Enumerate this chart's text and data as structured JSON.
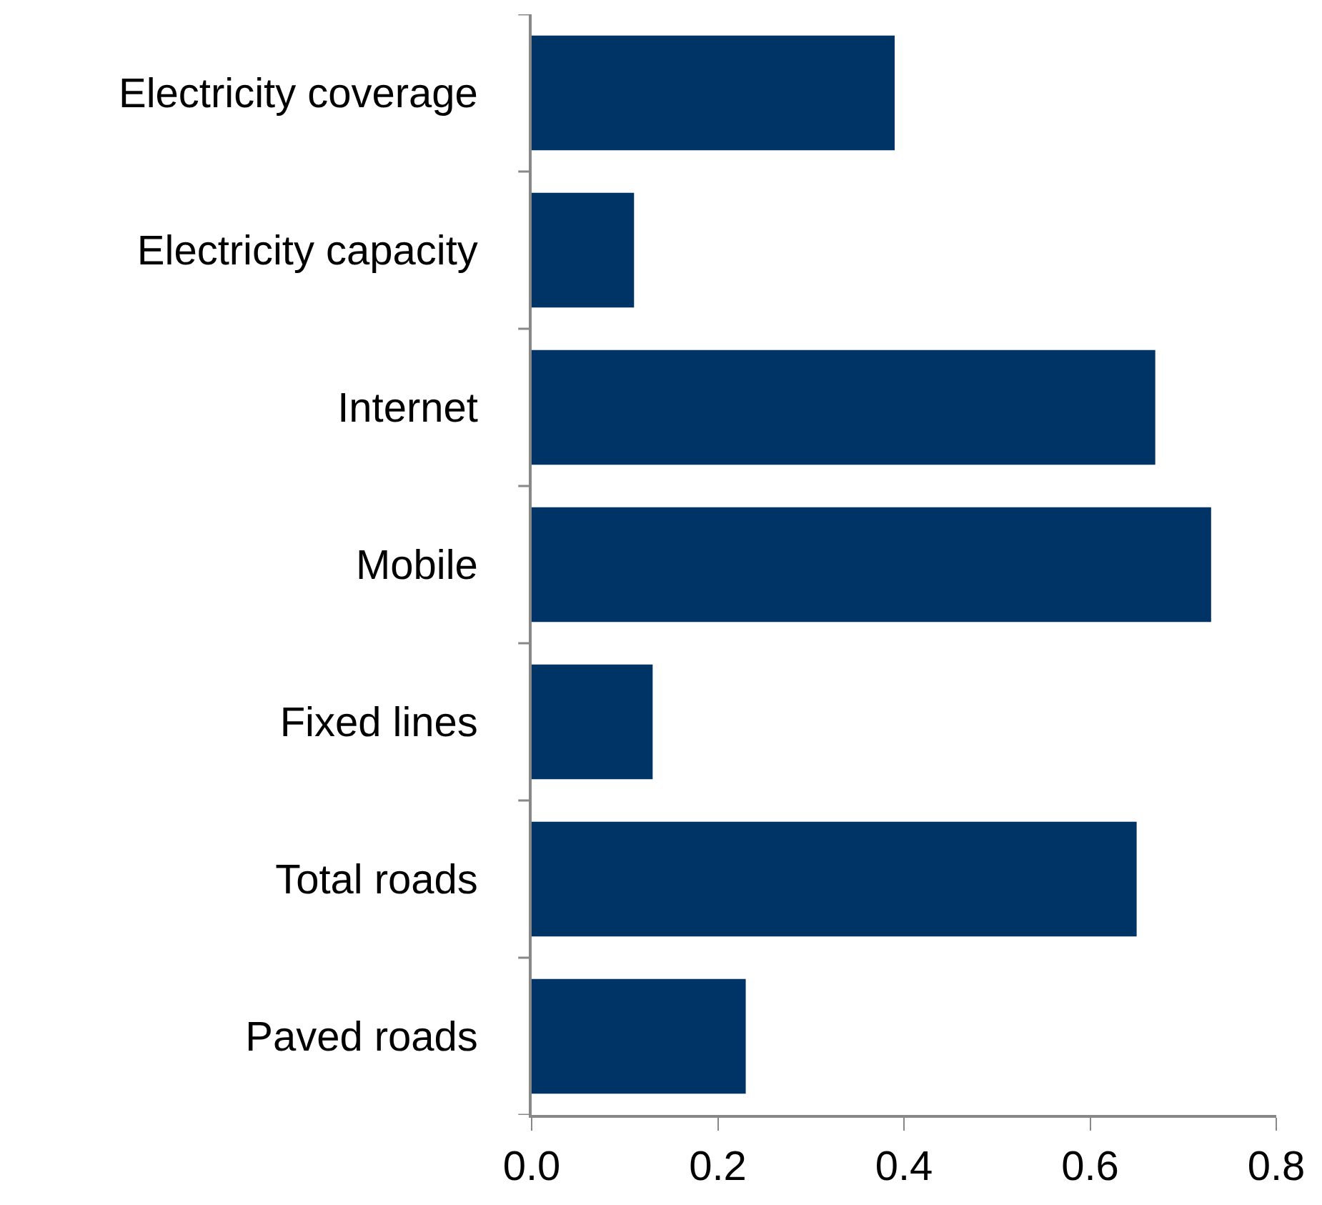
{
  "chart_data": {
    "type": "bar",
    "orientation": "horizontal",
    "categories": [
      "Electricity coverage",
      "Electricity capacity",
      "Internet",
      "Mobile",
      "Fixed lines",
      "Total roads",
      "Paved roads"
    ],
    "values": [
      0.39,
      0.11,
      0.67,
      0.73,
      0.13,
      0.65,
      0.23
    ],
    "color": "#003466",
    "xlim": [
      0,
      0.8
    ],
    "xticks": [
      {
        "value": 0,
        "label": "0.0"
      },
      {
        "value": 0.2,
        "label": "0.2"
      },
      {
        "value": 0.4,
        "label": "0.4"
      },
      {
        "value": 0.6,
        "label": "0.6"
      },
      {
        "value": 0.8,
        "label": "0.8"
      }
    ],
    "grid": false
  }
}
